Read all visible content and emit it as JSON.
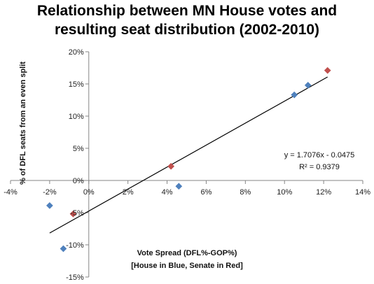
{
  "chart_data": {
    "type": "scatter",
    "title_lines": [
      "Relationship between MN House votes and",
      "resulting seat distribution (2002-2010)"
    ],
    "xlabel_lines": [
      "Vote Spread (DFL%-GOP%)",
      "[House in Blue, Senate in Red]"
    ],
    "ylabel": "% of DFL seats from an even split",
    "xlim": [
      -0.04,
      0.14
    ],
    "ylim": [
      -0.15,
      0.2
    ],
    "x_ticks": [
      -0.04,
      -0.02,
      0,
      0.02,
      0.04,
      0.06,
      0.08,
      0.1,
      0.12,
      0.14
    ],
    "x_tick_labels": [
      "-4%",
      "-2%",
      "0%",
      "2%",
      "4%",
      "6%",
      "8%",
      "10%",
      "12%",
      "14%"
    ],
    "y_ticks": [
      -0.15,
      -0.1,
      -0.05,
      0,
      0.05,
      0.1,
      0.15,
      0.2
    ],
    "y_tick_labels": [
      "-15%",
      "-10%",
      "-5%",
      "0%",
      "5%",
      "10%",
      "15%",
      "20%"
    ],
    "grid": false,
    "series": [
      {
        "color": "#4f81bd",
        "points": [
          {
            "x": -0.02,
            "y": -0.039
          },
          {
            "x": -0.013,
            "y": -0.106
          },
          {
            "x": 0.046,
            "y": -0.009
          },
          {
            "x": 0.105,
            "y": 0.133
          },
          {
            "x": 0.112,
            "y": 0.148
          }
        ]
      },
      {
        "color": "#c0504d",
        "points": [
          {
            "x": -0.008,
            "y": -0.052
          },
          {
            "x": 0.042,
            "y": 0.022
          },
          {
            "x": 0.122,
            "y": 0.171
          }
        ]
      }
    ],
    "trendline": {
      "slope": 1.7076,
      "intercept": -0.0475,
      "x_range": [
        -0.02,
        0.122
      ],
      "equation": "y = 1.7076x - 0.0475",
      "r_squared": "R² = 0.9379"
    }
  }
}
